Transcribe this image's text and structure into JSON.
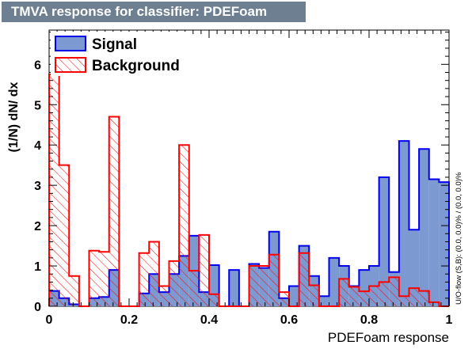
{
  "title": "TMVA response for classifier: PDEFoam",
  "chart_data": {
    "type": "histogram",
    "title": "TMVA response for classifier: PDEFoam",
    "xlabel": "PDEFoam response",
    "ylabel": "(1/N) dN/ dx",
    "xlim": [
      0,
      1
    ],
    "ylim": [
      0,
      6.85
    ],
    "x_ticks": [
      "0",
      "0.2",
      "0.4",
      "0.6",
      "0.8",
      "1"
    ],
    "y_ticks": [
      "0",
      "1",
      "2",
      "3",
      "4",
      "5",
      "6"
    ],
    "side_note": "U/O-flow (S,B): (0.0, 0.0)% / (0.0, 0.0)%",
    "legend_position": "top-left",
    "bin_width": 0.025,
    "series": [
      {
        "name": "Signal",
        "fill": "#7d99d1",
        "line": "#0000ee",
        "style": "solid",
        "values": [
          0.38,
          0.2,
          0.05,
          0,
          0.2,
          0.23,
          0.9,
          0,
          0,
          0.32,
          0.8,
          0.35,
          0.8,
          1.25,
          1.75,
          0.35,
          1.02,
          0,
          0.9,
          0,
          1.05,
          0.95,
          1.85,
          0.2,
          0.5,
          1.5,
          0.75,
          0.25,
          1.2,
          1.0,
          0.5,
          0.9,
          1.0,
          3.2,
          0.85,
          4.1,
          1.9,
          3.9,
          3.15,
          3.08
        ]
      },
      {
        "name": "Background",
        "fill": "#ffffff",
        "line": "#ff0000",
        "style": "hatched",
        "values": [
          5.75,
          3.5,
          0.75,
          0,
          1.38,
          1.35,
          4.7,
          0,
          0,
          1.32,
          1.6,
          0.5,
          1.12,
          4.0,
          0.88,
          1.77,
          0.3,
          0,
          0,
          0,
          1.0,
          1.0,
          1.28,
          0.35,
          0,
          1.32,
          0.52,
          0,
          0,
          0.68,
          0.48,
          0.37,
          0.5,
          0.6,
          0.72,
          0.25,
          0.45,
          0.38,
          0.1,
          0
        ]
      }
    ]
  }
}
